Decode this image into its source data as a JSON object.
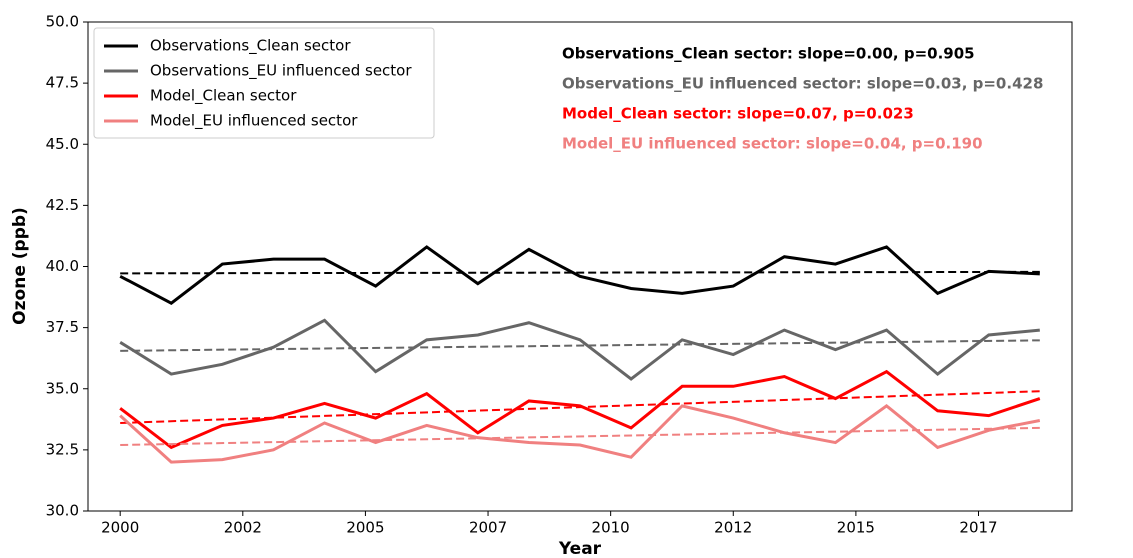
{
  "chart_data": {
    "type": "line",
    "xlabel": "Year",
    "ylabel": "Ozone (ppb)",
    "x": [
      2000,
      2001,
      2002,
      2003,
      2004,
      2005,
      2006,
      2007,
      2008,
      2009,
      2010,
      2011,
      2012,
      2013,
      2014,
      2015,
      2016,
      2017,
      2018
    ],
    "xlim": [
      1999.37,
      2018.63
    ],
    "xticks": [
      {
        "value": 2000,
        "label": "2000"
      },
      {
        "value": 2002.4,
        "label": "2002"
      },
      {
        "value": 2004.8,
        "label": "2005"
      },
      {
        "value": 2007.2,
        "label": "2007"
      },
      {
        "value": 2009.6,
        "label": "2010"
      },
      {
        "value": 2012,
        "label": "2012"
      },
      {
        "value": 2014.4,
        "label": "2015"
      },
      {
        "value": 2016.8,
        "label": "2017"
      }
    ],
    "ylim": [
      30,
      50
    ],
    "yticks": [
      {
        "value": 30,
        "label": "30.0"
      },
      32.5,
      {
        "value": 35,
        "label": "35.0"
      },
      37.5,
      {
        "value": 40,
        "label": "40.0"
      },
      42.5,
      {
        "value": 45,
        "label": "45.0"
      },
      47.5,
      {
        "value": 50,
        "label": "50.0"
      }
    ],
    "legend": "upper left",
    "series": [
      {
        "name": "Observations_Clean sector",
        "color": "#000000",
        "values": [
          39.6,
          38.5,
          40.1,
          40.3,
          40.3,
          39.2,
          40.8,
          39.3,
          40.7,
          39.6,
          39.1,
          38.9,
          39.2,
          40.4,
          40.1,
          40.8,
          38.9,
          39.8,
          39.7
        ],
        "trend": [
          39.72,
          39.78
        ],
        "annotation": "Observations_Clean sector: slope=0.00, p=0.905"
      },
      {
        "name": "Observations_EU influenced sector",
        "color": "#666666",
        "values": [
          36.9,
          35.6,
          36.0,
          36.7,
          37.8,
          35.7,
          37.0,
          37.2,
          37.7,
          37.0,
          35.4,
          37.0,
          36.4,
          37.4,
          36.6,
          37.4,
          35.6,
          37.2,
          37.4
        ],
        "trend": [
          36.55,
          36.98
        ],
        "annotation": "Observations_EU influenced sector: slope=0.03, p=0.428"
      },
      {
        "name": "Model_Clean sector",
        "color": "#ff0000",
        "values": [
          34.2,
          32.6,
          33.5,
          33.8,
          34.4,
          33.8,
          34.8,
          33.2,
          34.5,
          34.3,
          33.4,
          35.1,
          35.1,
          35.5,
          34.6,
          35.7,
          34.1,
          33.9,
          34.6
        ],
        "trend": [
          33.6,
          34.9
        ],
        "annotation": "Model_Clean sector: slope=0.07, p=0.023"
      },
      {
        "name": "Model_EU influenced sector",
        "color": "#f08080",
        "values": [
          33.9,
          32.0,
          32.1,
          32.5,
          33.6,
          32.8,
          33.5,
          33.0,
          32.8,
          32.7,
          32.2,
          34.3,
          33.8,
          33.2,
          32.8,
          34.3,
          32.6,
          33.3,
          33.7
        ],
        "trend": [
          32.7,
          33.4
        ],
        "annotation": "Model_EU influenced sector: slope=0.04, p=0.190"
      }
    ]
  }
}
